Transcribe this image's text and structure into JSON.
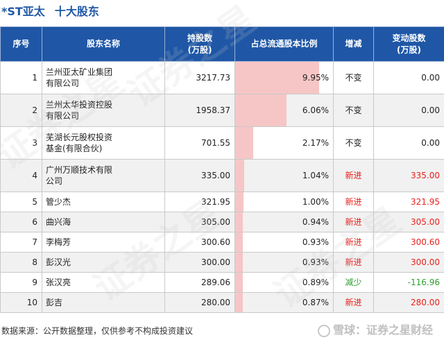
{
  "title": {
    "stock": "*ST亚太",
    "section": "十大股东"
  },
  "headers": [
    "序号",
    "股东名称",
    "持股数\n(万股)",
    "占总流通股本比例",
    "增减",
    "变动股数\n(万股)"
  ],
  "rows": [
    {
      "idx": "1",
      "name": "兰州亚太矿业集团有限公司",
      "name_lines": [
        "兰州亚太矿业集团",
        "有限公司"
      ],
      "shares": "3217.73",
      "ratio": "9.95%",
      "ratio_value": 9.95,
      "change": "不变",
      "change_type": "none",
      "delta": "0.00"
    },
    {
      "idx": "2",
      "name": "兰州太华投资控股有限公司",
      "name_lines": [
        "兰州太华投资控股",
        "有限公司"
      ],
      "shares": "1958.37",
      "ratio": "6.06%",
      "ratio_value": 6.06,
      "change": "不变",
      "change_type": "none",
      "delta": "0.00"
    },
    {
      "idx": "3",
      "name": "芜湖长元股权投资基金(有限合伙)",
      "name_lines": [
        "芜湖长元股权投资",
        "基金(有限合伙)"
      ],
      "shares": "701.55",
      "ratio": "2.17%",
      "ratio_value": 2.17,
      "change": "不变",
      "change_type": "none",
      "delta": "0.00"
    },
    {
      "idx": "4",
      "name": "广州万顺技术有限公司",
      "name_lines": [
        "广州万顺技术有限",
        "公司"
      ],
      "shares": "335.00",
      "ratio": "1.04%",
      "ratio_value": 1.04,
      "change": "新进",
      "change_type": "up",
      "delta": "335.00"
    },
    {
      "idx": "5",
      "name": "管少杰",
      "name_lines": [
        "管少杰"
      ],
      "shares": "321.95",
      "ratio": "1.00%",
      "ratio_value": 1.0,
      "change": "新进",
      "change_type": "up",
      "delta": "321.95"
    },
    {
      "idx": "6",
      "name": "曲兴海",
      "name_lines": [
        "曲兴海"
      ],
      "shares": "305.00",
      "ratio": "0.94%",
      "ratio_value": 0.94,
      "change": "新进",
      "change_type": "up",
      "delta": "305.00"
    },
    {
      "idx": "7",
      "name": "李梅芳",
      "name_lines": [
        "李梅芳"
      ],
      "shares": "300.60",
      "ratio": "0.93%",
      "ratio_value": 0.93,
      "change": "新进",
      "change_type": "up",
      "delta": "300.60"
    },
    {
      "idx": "8",
      "name": "彭汉光",
      "name_lines": [
        "彭汉光"
      ],
      "shares": "300.00",
      "ratio": "0.93%",
      "ratio_value": 0.93,
      "change": "新进",
      "change_type": "up",
      "delta": "300.00"
    },
    {
      "idx": "9",
      "name": "张汉亮",
      "name_lines": [
        "张汉亮"
      ],
      "shares": "289.06",
      "ratio": "0.89%",
      "ratio_value": 0.89,
      "change": "减少",
      "change_type": "down",
      "delta": "-116.96"
    },
    {
      "idx": "10",
      "name": "彭吉",
      "name_lines": [
        "彭吉"
      ],
      "shares": "280.00",
      "ratio": "0.87%",
      "ratio_value": 0.87,
      "change": "新进",
      "change_type": "up",
      "delta": "280.00"
    }
  ],
  "ratio_max": 11.6,
  "colors": {
    "header_bg": "#1f57a6",
    "bar": "#f6c6c6",
    "up": "#e8201c",
    "down": "#2ea02e"
  },
  "footer": "数据来源：公开数据整理，仅供参考不构成投资建议",
  "brand": "雪球：证券之星财经",
  "watermark": "证券之星"
}
